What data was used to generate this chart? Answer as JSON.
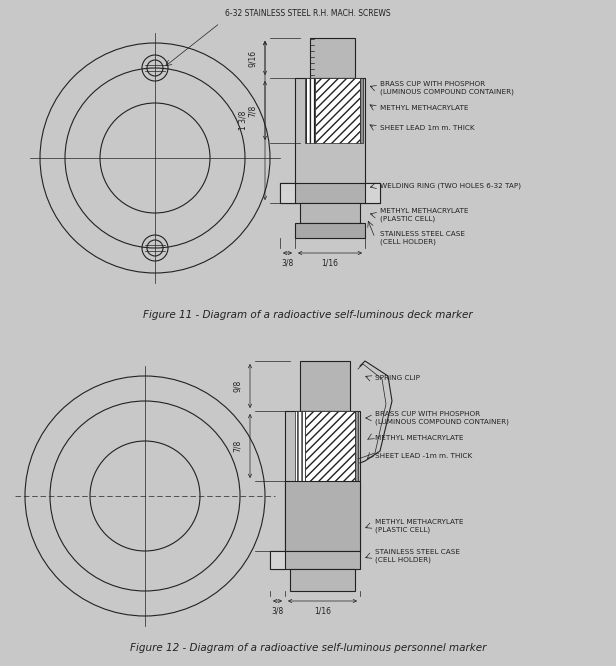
{
  "bg_color": "#c8c8c8",
  "panel_color": "#d4d4d4",
  "line_color": "#222222",
  "fig_caption1": "Figure 11 - Diagram of a radioactive self-luminous deck marker",
  "fig_caption2": "Figure 12 - Diagram of a radioactive self-luminous personnel marker",
  "screw_label": "6-32 STAINLESS STEEL R.H. MACH. SCREWS",
  "labels_fig1": [
    "BRASS CUP WITH PHOSPHOR\n(LUMINOUS COMPOUND CONTAINER)",
    "METHYL METHACRYLATE",
    "SHEET LEAD 1m m. THICK",
    "WELDING RING (TWO HOLES 6-32 TAP)",
    "METHYL METHACRYLATE\n(PLASTIC CELL)",
    "STAINLESS STEEL CASE\n(CELL HOLDER)"
  ],
  "labels_fig2": [
    "SPRING CLIP",
    "BRASS CUP WITH PHOSPHOR\n(LUMINOUS COMPOUND CONTAINER)",
    "METHYL METHACRYLATE",
    "SHEET LEAD -1m m. THICK",
    "METHYL METHACRYLATE\n(PLASTIC CELL)",
    "STAINLESS STEEL CASE\n(CELL HOLDER)"
  ],
  "dim_fig1_vert": [
    "9/16",
    "7/8",
    "1 3/8"
  ],
  "dim_fig1_horiz": [
    "3/8",
    "1/16"
  ],
  "dim_fig2_vert": [
    "9/8",
    "7/8"
  ],
  "dim_fig2_horiz": [
    "3/8",
    "1/16"
  ],
  "font_size_label": 5.2,
  "font_size_caption": 7.5,
  "font_size_dim": 5.5,
  "font_size_screw": 5.5
}
